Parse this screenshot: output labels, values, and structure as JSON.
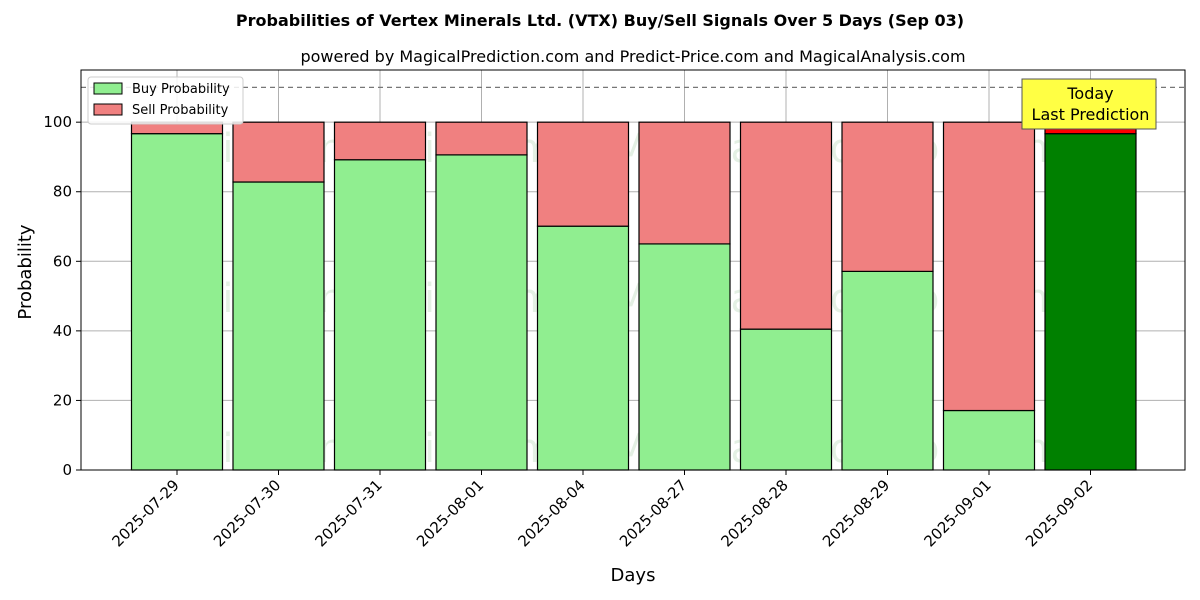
{
  "chart_data": {
    "type": "bar",
    "stacked": true,
    "title": "Probabilities of Vertex Minerals Ltd. (VTX) Buy/Sell Signals Over 5 Days (Sep 03)",
    "subtitle": "powered by MagicalPrediction.com and Predict-Price.com and MagicalAnalysis.com",
    "xlabel": "Days",
    "ylabel": "Probability",
    "ylim": [
      0,
      115
    ],
    "yticks": [
      0,
      20,
      40,
      60,
      80,
      100
    ],
    "reference_line": 110,
    "grid": true,
    "legend_position": "top-left",
    "categories": [
      "2025-07-29",
      "2025-07-30",
      "2025-07-31",
      "2025-08-01",
      "2025-08-04",
      "2025-08-27",
      "2025-08-28",
      "2025-08-29",
      "2025-09-01",
      "2025-09-02"
    ],
    "series": [
      {
        "name": "Buy Probability",
        "color": "#90ee90",
        "highlight_color": "#008000",
        "values": [
          96.7,
          82.8,
          89.2,
          90.6,
          70.1,
          65.0,
          40.5,
          57.1,
          17.1,
          96.7
        ]
      },
      {
        "name": "Sell Probability",
        "color": "#f08080",
        "highlight_color": "#ff0000",
        "values": [
          3.3,
          17.2,
          10.8,
          9.4,
          29.9,
          35.0,
          59.5,
          42.9,
          82.9,
          3.3
        ]
      }
    ],
    "highlight_index": 9,
    "annotation": {
      "line1": "Today",
      "line2": "Last Prediction",
      "color": "#ffff44"
    },
    "watermarks": [
      "MagicalAnalysis.com",
      "MagicalPrediction.com"
    ]
  }
}
